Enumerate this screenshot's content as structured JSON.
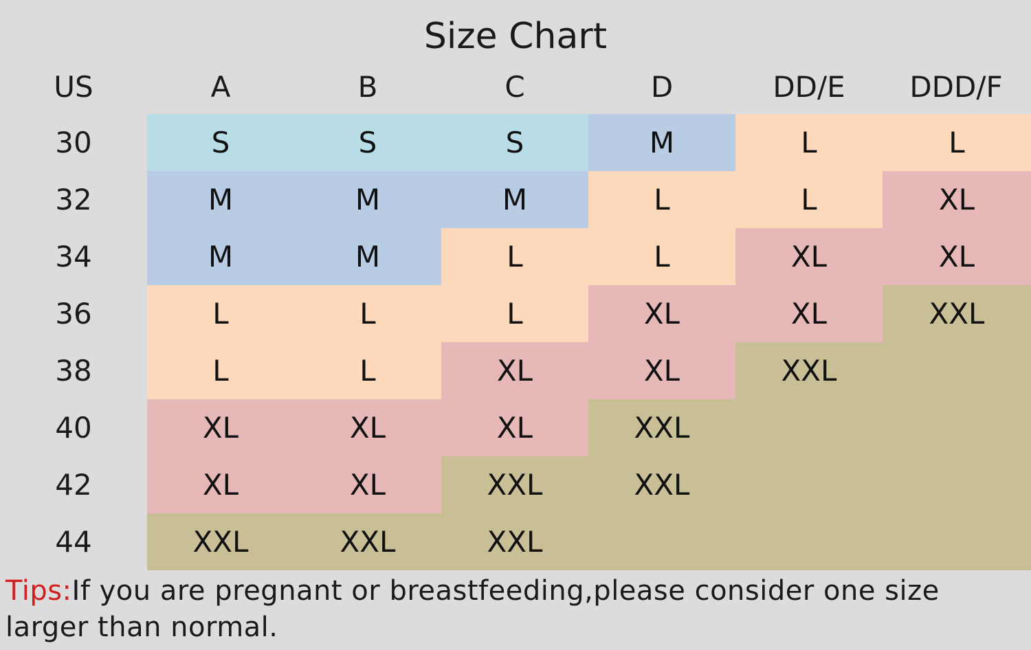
{
  "title": "Size Chart",
  "columns": [
    "US",
    "A",
    "B",
    "C",
    "D",
    "DD/E",
    "DDD/F"
  ],
  "rows": [
    {
      "band": "30",
      "sizes": [
        "S",
        "S",
        "S",
        "M",
        "L",
        "L"
      ]
    },
    {
      "band": "32",
      "sizes": [
        "M",
        "M",
        "M",
        "L",
        "L",
        "XL"
      ]
    },
    {
      "band": "34",
      "sizes": [
        "M",
        "M",
        "L",
        "L",
        "XL",
        "XL"
      ]
    },
    {
      "band": "36",
      "sizes": [
        "L",
        "L",
        "L",
        "XL",
        "XL",
        "XXL"
      ]
    },
    {
      "band": "38",
      "sizes": [
        "L",
        "L",
        "XL",
        "XL",
        "XXL",
        ""
      ]
    },
    {
      "band": "40",
      "sizes": [
        "XL",
        "XL",
        "XL",
        "XXL",
        "",
        ""
      ]
    },
    {
      "band": "42",
      "sizes": [
        "XL",
        "XL",
        "XXL",
        "XXL",
        "",
        ""
      ]
    },
    {
      "band": "44",
      "sizes": [
        "XXL",
        "XXL",
        "XXL",
        "",
        "",
        ""
      ]
    }
  ],
  "size_colors": {
    "S": "#b8dde6",
    "M": "#b8cce4",
    "L": "#fdd9bc",
    "XL": "#e6b8b8",
    "XXL": "#c9bf97"
  },
  "tips": {
    "label": "Tips:",
    "text": "If you are pregnant or breastfeeding,please consider one size larger than normal."
  }
}
